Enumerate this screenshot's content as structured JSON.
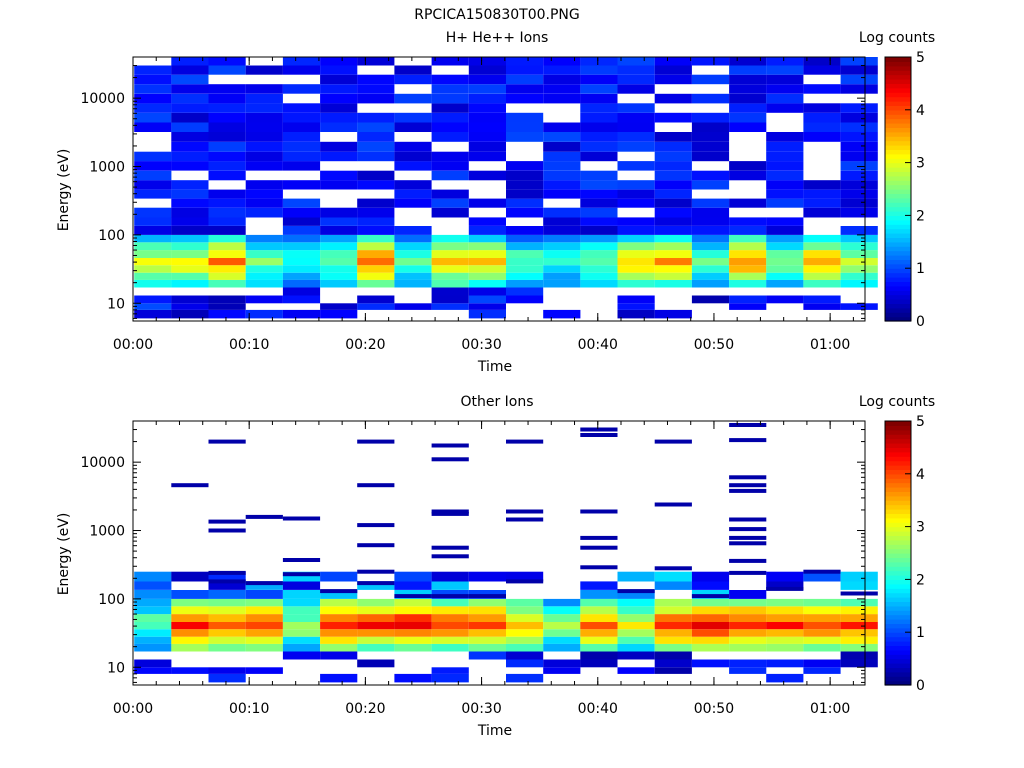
{
  "page_title": "RPCICA150830T00.PNG",
  "chart_data": [
    {
      "type": "heatmap",
      "title": "H+ He++ Ions",
      "xlabel": "Time",
      "ylabel": "Energy (eV)",
      "yscale": "log",
      "ylim": [
        5.5,
        40000
      ],
      "xlim_minutes": [
        0,
        63
      ],
      "x_ticks": [
        "00:00",
        "00:10",
        "00:20",
        "00:30",
        "00:40",
        "00:50",
        "01:00"
      ],
      "y_ticks": [
        "10",
        "100",
        "1000",
        "10000"
      ],
      "colorbar": {
        "label": "Log counts",
        "range": [
          0,
          5
        ],
        "ticks": [
          "0",
          "1",
          "2",
          "3",
          "4",
          "5"
        ]
      },
      "time_bins_minutes": [
        1.7,
        4.9,
        8.1,
        11.3,
        14.5,
        17.7,
        20.9,
        24.1,
        27.3,
        30.5,
        33.7,
        36.9,
        40.1,
        43.3,
        46.5,
        49.7,
        52.9,
        56.1,
        59.3,
        62.5
      ],
      "energy_bins_eV": [
        6,
        8,
        10,
        13,
        17,
        22,
        28,
        36,
        46,
        60,
        78,
        100,
        135,
        180,
        250,
        340,
        460,
        630,
        870,
        1200,
        1650,
        2300,
        3200,
        4400,
        6100,
        8400,
        11600,
        16000,
        22000,
        30000,
        40000
      ],
      "note_values": "log10 counts per bin; null = no counts",
      "profile": {
        "low_energy_peak_eV": 40,
        "peak_log_counts_by_bin": [
          3.0,
          3.2,
          3.8,
          2.6,
          2.0,
          2.4,
          3.9,
          2.2,
          3.6,
          3.3,
          2.4,
          2.1,
          2.5,
          3.4,
          3.7,
          2.4,
          3.8,
          2.5,
          3.6,
          2.7
        ],
        "high_energy_level": 0.7
      }
    },
    {
      "type": "heatmap",
      "title": "Other Ions",
      "xlabel": "Time",
      "ylabel": "Energy (eV)",
      "yscale": "log",
      "ylim": [
        5.5,
        40000
      ],
      "xlim_minutes": [
        0,
        63
      ],
      "x_ticks": [
        "00:00",
        "00:10",
        "00:20",
        "00:30",
        "00:40",
        "00:50",
        "01:00"
      ],
      "y_ticks": [
        "10",
        "100",
        "1000",
        "10000"
      ],
      "colorbar": {
        "label": "Log counts",
        "range": [
          0,
          5
        ],
        "ticks": [
          "0",
          "1",
          "2",
          "3",
          "4",
          "5"
        ]
      },
      "profile": {
        "low_energy_peak_eV": 42,
        "peak_log_counts_by_bin": [
          2.4,
          4.4,
          4.0,
          4.2,
          2.8,
          4.5,
          4.3,
          4.5,
          4.2,
          4.2,
          3.6,
          2.6,
          4.0,
          3.2,
          4.3,
          4.6,
          4.5,
          4.4,
          4.3,
          4.2
        ],
        "sparse_high_energy_lines_eV": [
          [],
          [
            4600
          ],
          [
            20000,
            1350,
            1000,
            240,
            180
          ],
          [
            1580,
            170
          ],
          [
            1500,
            370,
            230
          ],
          [
            130
          ],
          [
            20000,
            4600,
            1200,
            610,
            250,
            170
          ],
          [
            110
          ],
          [
            17500,
            11000,
            1900,
            1750,
            560,
            420,
            110
          ],
          [
            110
          ],
          [
            20000,
            1900,
            1450,
            180
          ],
          [],
          [
            30000,
            25000,
            1900,
            780,
            560,
            290
          ],
          [
            130
          ],
          [
            20000,
            2400,
            280
          ],
          [
            110
          ],
          [
            35000,
            21000,
            6000,
            4600,
            3800,
            1450,
            1050,
            780,
            650,
            360,
            240
          ],
          [
            140
          ],
          [
            250
          ],
          [
            120
          ]
        ]
      }
    }
  ]
}
